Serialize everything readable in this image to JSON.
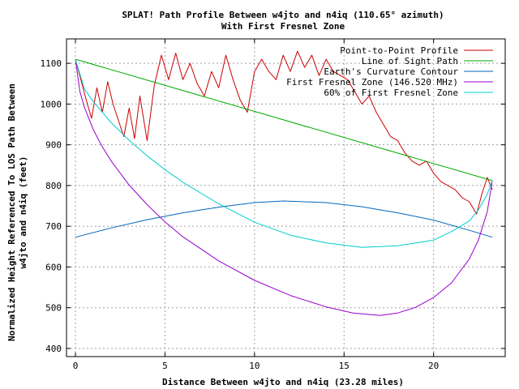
{
  "chart_data": {
    "type": "line",
    "title": "SPLAT! Path Profile Between w4jto and n4iq (110.65° azimuth)",
    "subtitle": "With First Fresnel Zone",
    "xlabel": "Distance Between w4jto and n4iq (23.28 miles)",
    "ylabel_line1": "Normalized Height Referenced To LOS Path Between",
    "ylabel_line2": "w4jto and n4iq (feet)",
    "xlim": [
      -0.5,
      24
    ],
    "ylim": [
      380,
      1160
    ],
    "x_ticks": [
      0,
      5,
      10,
      15,
      20
    ],
    "y_ticks": [
      400,
      500,
      600,
      700,
      800,
      900,
      1000,
      1100
    ],
    "grid": true,
    "legend_position": "top-right",
    "series": [
      {
        "name": "Point-to-Point Profile",
        "color": "#cc0000",
        "x": [
          0,
          0.3,
          0.6,
          0.9,
          1.2,
          1.5,
          1.8,
          2.1,
          2.4,
          2.7,
          3.0,
          3.3,
          3.6,
          4.0,
          4.4,
          4.8,
          5.2,
          5.6,
          6.0,
          6.4,
          6.8,
          7.2,
          7.6,
          8.0,
          8.4,
          8.8,
          9.2,
          9.6,
          10.0,
          10.4,
          10.8,
          11.2,
          11.6,
          12.0,
          12.4,
          12.8,
          13.2,
          13.6,
          14.0,
          14.4,
          14.8,
          15.2,
          15.6,
          16.0,
          16.4,
          16.8,
          17.2,
          17.6,
          18.0,
          18.4,
          18.8,
          19.2,
          19.6,
          20.0,
          20.4,
          20.8,
          21.2,
          21.6,
          22.0,
          22.4,
          22.7,
          23.0,
          23.28
        ],
        "y": [
          1110,
          1060,
          1010,
          965,
          1040,
          980,
          1055,
          1000,
          960,
          920,
          990,
          915,
          1020,
          910,
          1045,
          1120,
          1060,
          1125,
          1060,
          1100,
          1050,
          1020,
          1080,
          1040,
          1120,
          1060,
          1010,
          980,
          1080,
          1110,
          1080,
          1060,
          1120,
          1080,
          1130,
          1090,
          1120,
          1070,
          1110,
          1080,
          1070,
          1060,
          1030,
          1000,
          1020,
          980,
          950,
          920,
          910,
          880,
          860,
          850,
          860,
          830,
          810,
          800,
          790,
          770,
          760,
          730,
          780,
          820,
          790
        ]
      },
      {
        "name": "Line of Sight Path",
        "color": "#00aa00",
        "x": [
          0,
          23.28
        ],
        "y": [
          1110,
          812
        ]
      },
      {
        "name": "Earth's Curvature Contour",
        "color": "#0066bb",
        "x": [
          0,
          2,
          4,
          6,
          8,
          10,
          11.64,
          14,
          16,
          18,
          20,
          22,
          23.28
        ],
        "y": [
          673,
          696,
          716,
          733,
          747,
          758,
          762,
          758,
          748,
          733,
          715,
          690,
          673
        ]
      },
      {
        "name": "First Fresnel Zone (146.520 MHz)",
        "color": "#9900cc",
        "x": [
          0,
          0.25,
          0.5,
          1,
          1.5,
          2,
          3,
          4,
          5,
          6,
          8,
          10,
          12,
          14,
          15.5,
          17,
          18,
          19,
          20,
          21,
          22,
          22.5,
          23,
          23.28
        ],
        "y": [
          1110,
          1030,
          992,
          937,
          895,
          860,
          801,
          753,
          711,
          674,
          615,
          567,
          530,
          502,
          487,
          481,
          487,
          501,
          525,
          561,
          620,
          666,
          736,
          812
        ]
      },
      {
        "name": "60% of First Fresnel Zone",
        "color": "#00cccc",
        "x": [
          0,
          0.5,
          1,
          2,
          3,
          4,
          5,
          6,
          8,
          10,
          12,
          14,
          16,
          17,
          18,
          19,
          20,
          21,
          22,
          22.5,
          23,
          23.28
        ],
        "y": [
          1110,
          1037,
          1006,
          954,
          911,
          873,
          839,
          808,
          755,
          710,
          678,
          659,
          648,
          650,
          652,
          659,
          666,
          687,
          713,
          740,
          779,
          812
        ]
      }
    ]
  }
}
